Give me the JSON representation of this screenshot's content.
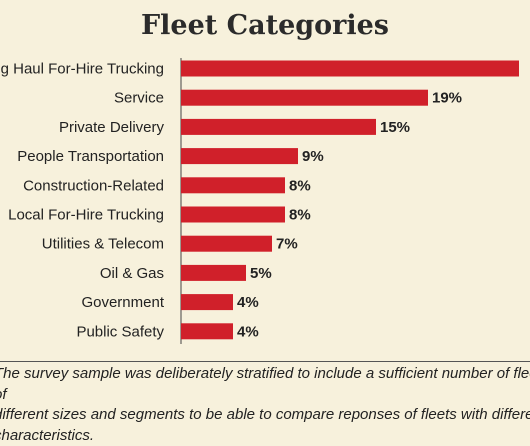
{
  "chart_data": {
    "type": "bar",
    "orientation": "horizontal",
    "title": "Fleet Categories",
    "categories": [
      "Long Haul For-Hire Trucking",
      "Service",
      "Private Delivery",
      "People Transportation",
      "Construction-Related",
      "Local For-Hire Trucking",
      "Utilities & Telecom",
      "Oil & Gas",
      "Government",
      "Public Safety"
    ],
    "values": [
      26,
      19,
      15,
      9,
      8,
      8,
      7,
      5,
      4,
      4
    ],
    "value_labels": [
      "",
      "19%",
      "15%",
      "9%",
      "8%",
      "8%",
      "7%",
      "5%",
      "4%",
      "4%"
    ],
    "xlabel": "",
    "ylabel": "",
    "grid": false,
    "bar_color": "#d0202a"
  },
  "footnote": "The survey sample was deliberately stratified to include a sufficient number of fleets of\ndifferent sizes and segments to be able to compare reponses of fleets with different characteristics."
}
